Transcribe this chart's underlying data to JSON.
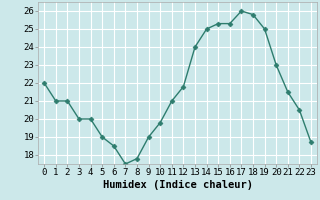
{
  "x": [
    0,
    1,
    2,
    3,
    4,
    5,
    6,
    7,
    8,
    9,
    10,
    11,
    12,
    13,
    14,
    15,
    16,
    17,
    18,
    19,
    20,
    21,
    22,
    23
  ],
  "y": [
    22,
    21,
    21,
    20,
    20,
    19,
    18.5,
    17.5,
    17.8,
    19,
    19.8,
    21,
    21.8,
    24,
    25,
    25.3,
    25.3,
    26,
    25.8,
    25,
    23,
    21.5,
    20.5,
    18.7
  ],
  "line_color": "#2e7d6e",
  "marker_color": "#2e7d6e",
  "bg_color": "#cce8ea",
  "grid_color": "#ffffff",
  "grid_color_minor": "#e0f0f2",
  "xlabel": "Humidex (Indice chaleur)",
  "ylim": [
    17.5,
    26.5
  ],
  "xlim": [
    -0.5,
    23.5
  ],
  "yticks": [
    18,
    19,
    20,
    21,
    22,
    23,
    24,
    25,
    26
  ],
  "xticks": [
    0,
    1,
    2,
    3,
    4,
    5,
    6,
    7,
    8,
    9,
    10,
    11,
    12,
    13,
    14,
    15,
    16,
    17,
    18,
    19,
    20,
    21,
    22,
    23
  ],
  "xlabel_fontsize": 7.5,
  "tick_fontsize": 6.5,
  "linewidth": 1.0,
  "markersize": 2.5
}
